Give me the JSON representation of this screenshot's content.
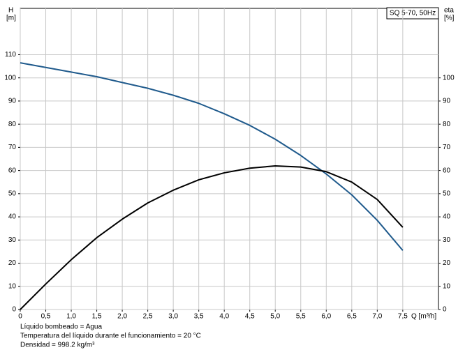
{
  "chart_data": {
    "type": "line",
    "box_label": "SQ 5-70, 50Hz",
    "y_label": [
      "H",
      "[m]"
    ],
    "y2_label": [
      "eta",
      "[%]"
    ],
    "x_label": "Q [m³/h]",
    "notes": [
      "Líquido bombeado = Agua",
      "Temperatura del líquido durante el funcionamiento = 20 °C",
      "Densidad = 998.2 kg/m³"
    ],
    "x": [
      0,
      0.5,
      1.0,
      1.5,
      2.0,
      2.5,
      3.0,
      3.5,
      4.0,
      4.5,
      5.0,
      5.5,
      6.0,
      6.5,
      7.0,
      7.5
    ],
    "series": [
      {
        "name": "H",
        "color": "#1f5a8c",
        "values": [
          106.5,
          104.5,
          102.5,
          100.5,
          98,
          95.5,
          92.5,
          89,
          84.5,
          79.5,
          73.5,
          66.5,
          58.5,
          49.5,
          38.5,
          25.5
        ]
      },
      {
        "name": "eta",
        "color": "#000000",
        "axis": "y2",
        "values": [
          0,
          11,
          21.5,
          31,
          39,
          46,
          51.5,
          56,
          59,
          61,
          62,
          61.5,
          59.5,
          55,
          47.5,
          35.5
        ]
      }
    ],
    "xlim": [
      0,
      8.2
    ],
    "xticks": [
      0,
      {
        "value": 0.5,
        "label": "0,5"
      },
      {
        "value": 1.0,
        "label": "1,0"
      },
      {
        "value": 1.5,
        "label": "1,5"
      },
      {
        "value": 2.0,
        "label": "2,0"
      },
      {
        "value": 2.5,
        "label": "2,5"
      },
      {
        "value": 3.0,
        "label": "3,0"
      },
      {
        "value": 3.5,
        "label": "3,5"
      },
      {
        "value": 4.0,
        "label": "4,0"
      },
      {
        "value": 4.5,
        "label": "4,5"
      },
      {
        "value": 5.0,
        "label": "5,0"
      },
      {
        "value": 5.5,
        "label": "5,5"
      },
      {
        "value": 6.0,
        "label": "6,0"
      },
      {
        "value": 6.5,
        "label": "6,5"
      },
      {
        "value": 7.0,
        "label": "7,0"
      },
      {
        "value": 7.5,
        "label": "7,5"
      }
    ],
    "ylim": [
      0,
      130
    ],
    "yticks": [
      0,
      10,
      20,
      30,
      40,
      50,
      60,
      70,
      80,
      90,
      100,
      110
    ],
    "y2lim": [
      0,
      130
    ],
    "y2ticks": [
      0,
      10,
      20,
      30,
      40,
      50,
      60,
      70,
      80,
      90,
      100
    ],
    "grid": true
  }
}
